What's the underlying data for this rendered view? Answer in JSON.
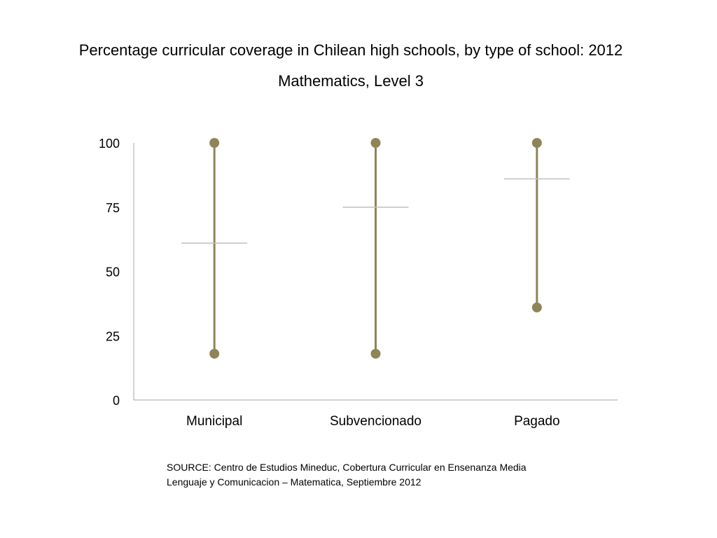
{
  "title": "Percentage curricular coverage in Chilean high schools, by type of school: 2012",
  "subtitle": "Mathematics, Level 3",
  "source": {
    "line1": "SOURCE: Centro de Estudios Mineduc, Cobertura Curricular en Ensenanza Media",
    "line2": "Lenguaje y Comunicacion – Matematica, Septiembre 2012"
  },
  "chart_data": {
    "type": "range",
    "categories": [
      "Municipal",
      "Subvencionado",
      "Pagado"
    ],
    "series": [
      {
        "values": [
          {
            "min": 18,
            "max": 100,
            "mean": 61
          },
          {
            "min": 18,
            "max": 100,
            "mean": 75
          },
          {
            "min": 36,
            "max": 100,
            "mean": 86
          }
        ]
      }
    ],
    "ylim": [
      0,
      100
    ],
    "yticks": [
      0,
      25,
      50,
      75,
      100
    ],
    "grid": false,
    "colors": {
      "range": "#8E8458",
      "mean": "#BFBFBF",
      "axis": "#A6A6A6"
    }
  }
}
